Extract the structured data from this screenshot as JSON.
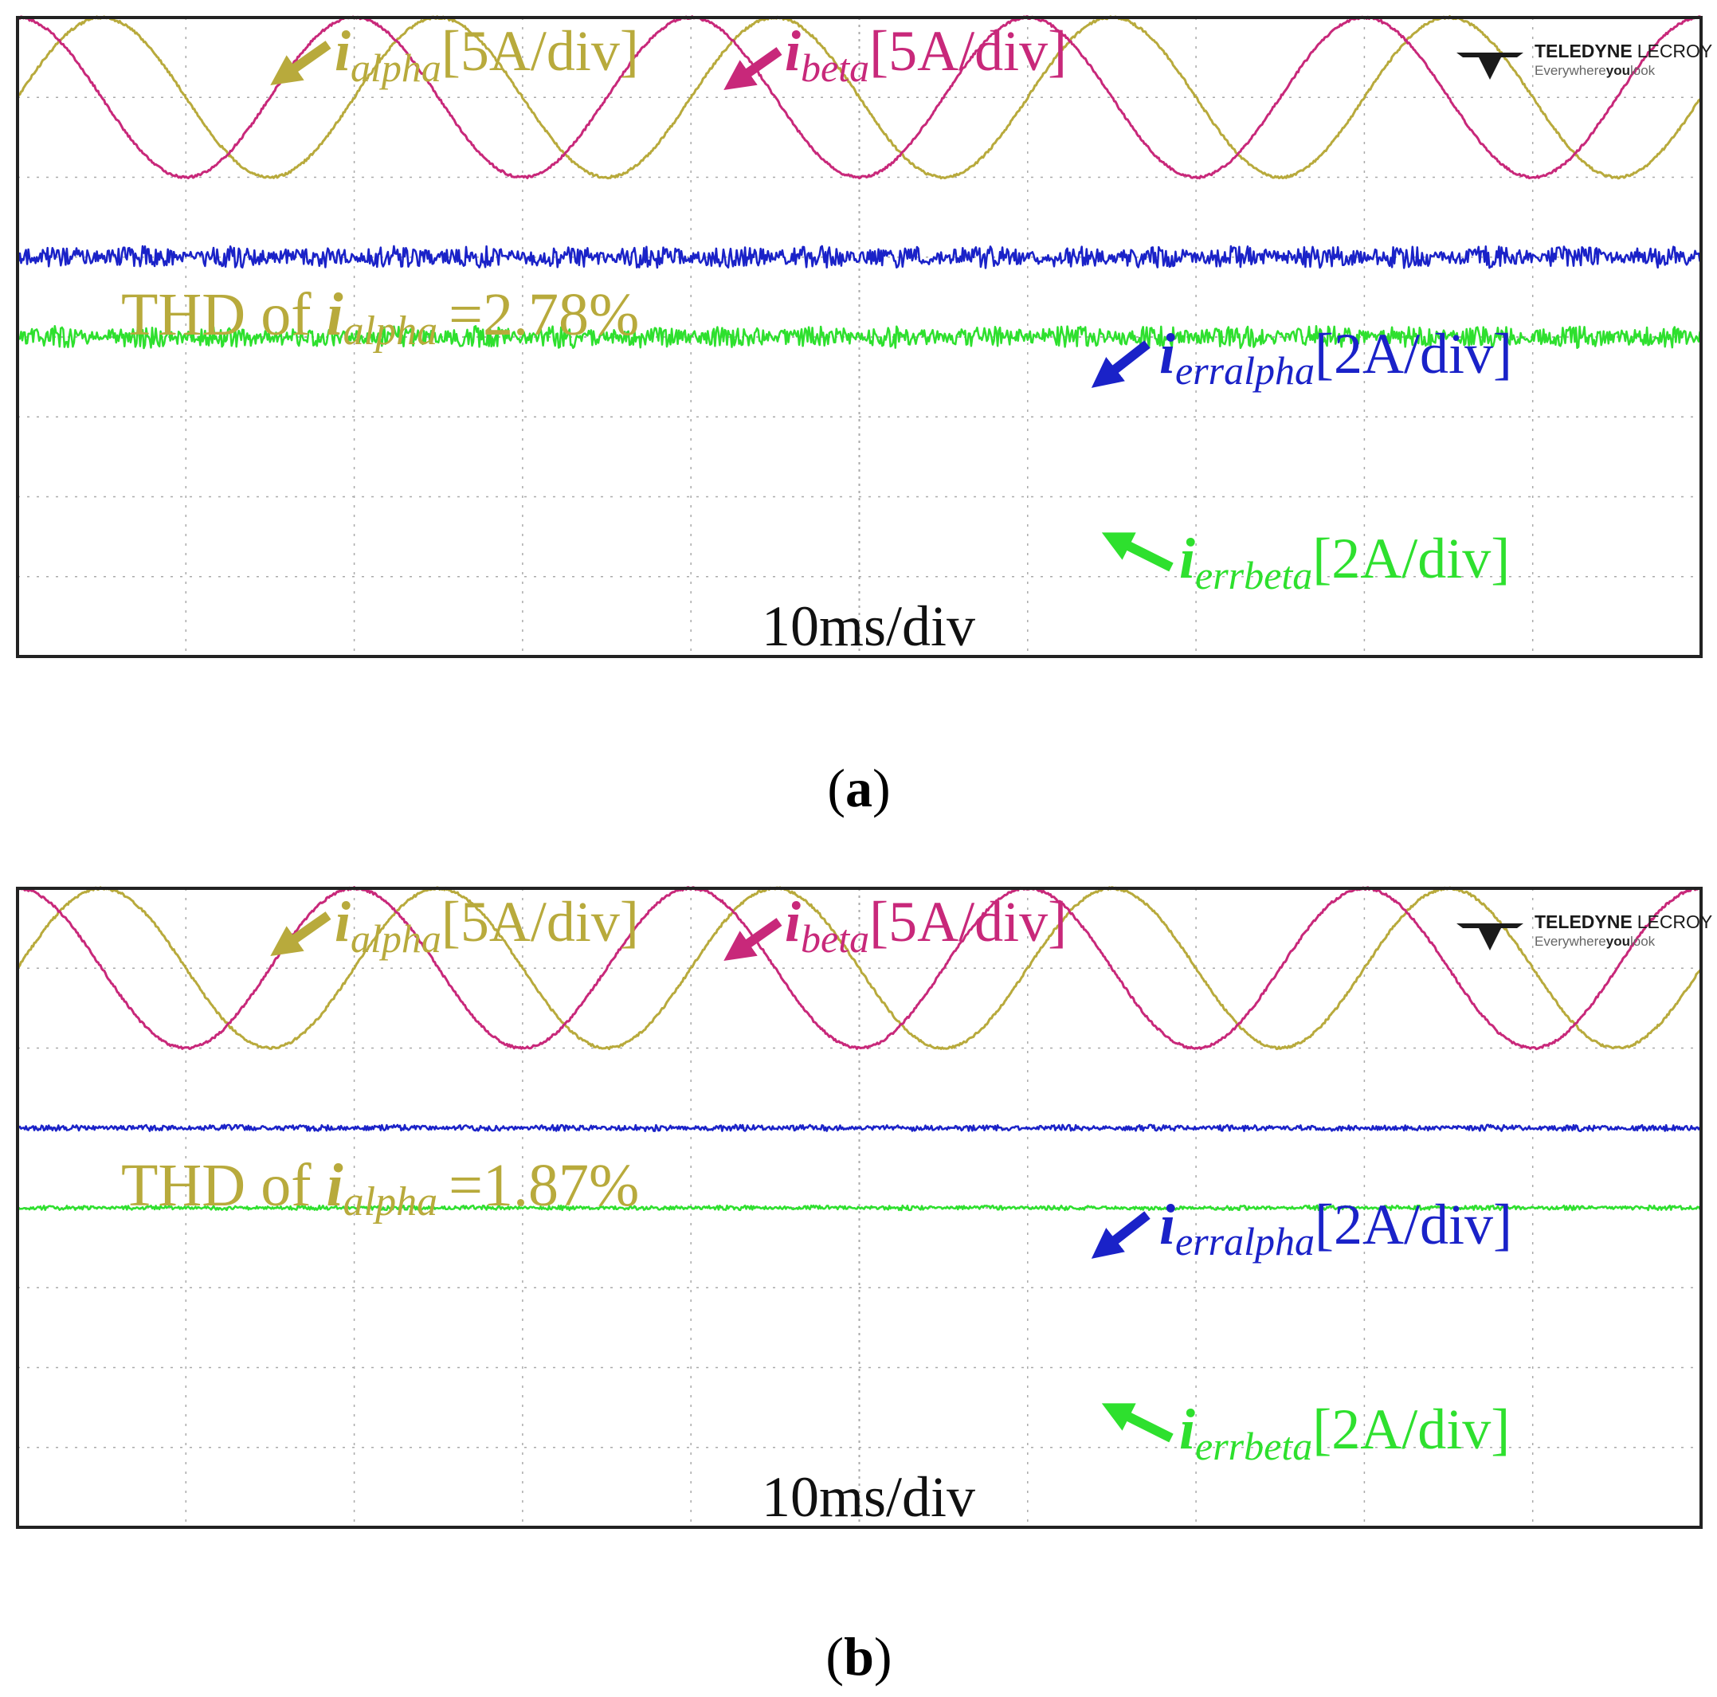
{
  "figure": {
    "panels": [
      {
        "caption": "a",
        "thd_prefix": "THD of ",
        "thd_sub": "alpha",
        "thd_value": "=2.78%"
      },
      {
        "caption": "b",
        "thd_prefix": "THD of ",
        "thd_sub": "alpha",
        "thd_value": "=1.87%"
      }
    ],
    "labels": {
      "i_alpha": {
        "main": "i",
        "sub": "alpha",
        "scale": "[5A/div]"
      },
      "i_beta": {
        "main": "i",
        "sub": "beta",
        "scale": "[5A/div]"
      },
      "i_erralpha": {
        "main": "i",
        "sub": "erralpha",
        "scale": "[2A/div]"
      },
      "i_errbeta": {
        "main": "i",
        "sub": "errbeta",
        "scale": "[2A/div]"
      },
      "timebase": "10ms/div"
    },
    "brand": {
      "name_bold": "TELEDYNE",
      "name_light": "LECROY",
      "tag_a": "Everywhere",
      "tag_b": "you",
      "tag_c": "look"
    },
    "colors": {
      "alpha": "#b8aa3c",
      "beta": "#c8287a",
      "erralpha": "#1a22c8",
      "errbeta": "#2ee02e",
      "grid": "#aaaaaa",
      "frame": "#222222"
    }
  },
  "chart_data": [
    {
      "type": "line",
      "panel": "a",
      "x_divisions": 10,
      "y_divisions": 8,
      "time_per_div": "10ms",
      "series": [
        {
          "name": "i_alpha",
          "scale": "5A/div",
          "waveform": "sine",
          "cycles": 5,
          "amplitude_div": 1.0,
          "center_div": 1.0,
          "phase_deg": 0
        },
        {
          "name": "i_beta",
          "scale": "5A/div",
          "waveform": "sine",
          "cycles": 5,
          "amplitude_div": 1.0,
          "center_div": 1.0,
          "phase_deg": 90
        },
        {
          "name": "i_erralpha",
          "scale": "2A/div",
          "waveform": "noise",
          "offset_div": 3.0,
          "ripple_div": 0.14
        },
        {
          "name": "i_errbeta",
          "scale": "2A/div",
          "waveform": "noise",
          "offset_div": 4.0,
          "ripple_div": 0.14
        }
      ],
      "annotations": [
        "THD of i_alpha =2.78%",
        "10ms/div"
      ]
    },
    {
      "type": "line",
      "panel": "b",
      "x_divisions": 10,
      "y_divisions": 8,
      "time_per_div": "10ms",
      "series": [
        {
          "name": "i_alpha",
          "scale": "5A/div",
          "waveform": "sine",
          "cycles": 5,
          "amplitude_div": 1.0,
          "center_div": 1.0,
          "phase_deg": 0
        },
        {
          "name": "i_beta",
          "scale": "5A/div",
          "waveform": "sine",
          "cycles": 5,
          "amplitude_div": 1.0,
          "center_div": 1.0,
          "phase_deg": 90
        },
        {
          "name": "i_erralpha",
          "scale": "2A/div",
          "waveform": "noise",
          "offset_div": 3.0,
          "ripple_div": 0.04
        },
        {
          "name": "i_errbeta",
          "scale": "2A/div",
          "waveform": "noise",
          "offset_div": 4.0,
          "ripple_div": 0.03
        }
      ],
      "annotations": [
        "THD of i_alpha =1.87%",
        "10ms/div"
      ]
    }
  ]
}
